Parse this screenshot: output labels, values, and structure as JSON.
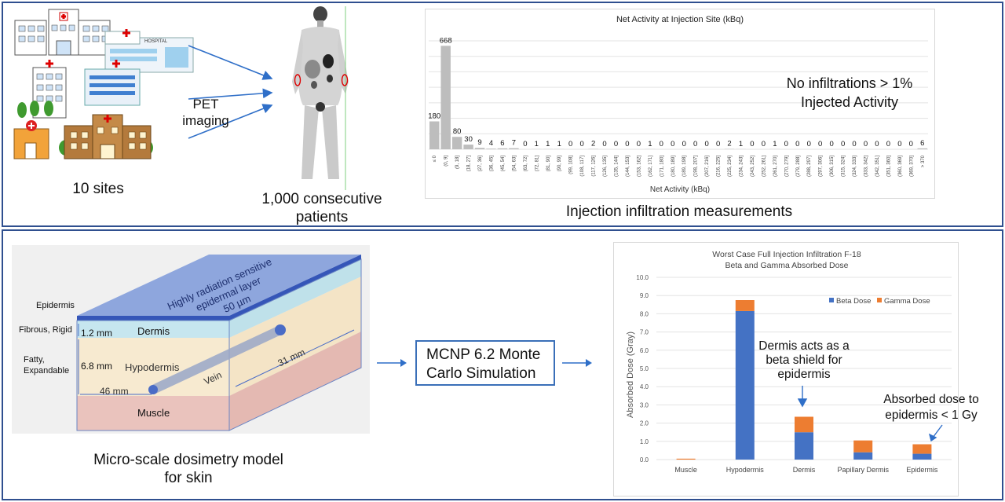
{
  "top": {
    "sites_caption": "10 sites",
    "pet_label_1": "PET",
    "pet_label_2": "imaging",
    "patients_caption_1": "1,000 consecutive",
    "patients_caption_2": "patients",
    "measurements_caption": "Injection infiltration measurements",
    "hospital_sign": "HOSPITAL"
  },
  "bottom": {
    "model_caption_1": "Micro-scale dosimetry model",
    "model_caption_2": "for skin",
    "sim_label_1": "MCNP 6.2 Monte",
    "sim_label_2": "Carlo Simulation",
    "skin": {
      "top_label_1": "Highly radiation sensitive",
      "top_label_2": "epidermal layer",
      "top_label_3": "50 µm",
      "epidermis": "Epidermis",
      "fibrous": "Fibrous, Rigid",
      "fatty_1": "Fatty,",
      "fatty_2": "Expandable",
      "dermis_thickness": "1.2 mm",
      "hypodermis_thickness": "6.8 mm",
      "dermis": "Dermis",
      "hypodermis": "Hypodermis",
      "muscle": "Muscle",
      "vein": "Vein",
      "width": "46 mm",
      "length": "31 mm"
    }
  },
  "colors": {
    "panel_border": "#2f4f8f",
    "bar_gray": "#bdbdbd",
    "beta": "#4472c4",
    "gamma": "#ed7d31",
    "epidermis_blue": "#6f8fd0",
    "dermis_cyan": "#c6e6ef",
    "hypodermis_cream": "#f7ead0",
    "muscle_pink": "#eac3bd"
  },
  "chart_data": [
    {
      "type": "bar",
      "title": "Net Activity  at Injection Site (kBq)",
      "xlabel": "Net Activity (kBq)",
      "ylabel": "",
      "categories": [
        "≤ 0",
        "(0, 9]",
        "(9, 18]",
        "(18, 27]",
        "(27, 36]",
        "(36, 45]",
        "(45, 54]",
        "(54, 63]",
        "(63, 72]",
        "(72, 81]",
        "(81, 90]",
        "(90, 99]",
        "(99, 108]",
        "(108, 117]",
        "(117, 126]",
        "(126, 135]",
        "(135, 144]",
        "(144, 153]",
        "(153, 162]",
        "(162, 171]",
        "(171, 180]",
        "(180, 189]",
        "(189, 198]",
        "(198, 207]",
        "(207, 216]",
        "(216, 225]",
        "(225, 234]",
        "(234, 243]",
        "(243, 252]",
        "(252, 261]",
        "(261, 270]",
        "(270, 279]",
        "(279, 288]",
        "(288, 297]",
        "(297, 306]",
        "(306, 315]",
        "(315, 324]",
        "(324, 333]",
        "(333, 342]",
        "(342, 351]",
        "(351, 360]",
        "(360, 369]",
        "(369, 370]",
        "> 370"
      ],
      "values": [
        180,
        668,
        80,
        30,
        9,
        4,
        6,
        7,
        0,
        1,
        1,
        1,
        0,
        0,
        2,
        0,
        0,
        0,
        0,
        1,
        0,
        0,
        0,
        0,
        0,
        0,
        2,
        1,
        0,
        0,
        1,
        0,
        0,
        0,
        0,
        0,
        0,
        0,
        0,
        0,
        0,
        0,
        0,
        6
      ],
      "ylim": [
        0,
        700
      ],
      "grid": true,
      "annotation_1": "No infiltrations > 1%",
      "annotation_2": "Injected Activity"
    },
    {
      "type": "bar",
      "stacked": true,
      "title": "Worst Case Full Injection Infiltration F-18",
      "subtitle": "Beta and Gamma Absorbed Dose",
      "xlabel": "",
      "ylabel": "Absorbed Dose (Gray)",
      "categories": [
        "Muscle",
        "Hypodermis",
        "Dermis",
        "Papillary Dermis",
        "Epidermis"
      ],
      "series": [
        {
          "name": "Beta Dose",
          "values": [
            0.0,
            8.15,
            1.5,
            0.4,
            0.32
          ]
        },
        {
          "name": "Gamma Dose",
          "values": [
            0.05,
            0.6,
            0.85,
            0.65,
            0.52
          ]
        }
      ],
      "yticks": [
        "0.0",
        "1.0",
        "2.0",
        "3.0",
        "4.0",
        "5.0",
        "6.0",
        "7.0",
        "8.0",
        "9.0",
        "10.0"
      ],
      "ylim": [
        0,
        10
      ],
      "grid": true,
      "legend": "top-right",
      "annotation_1": "Dermis acts as a",
      "annotation_2": "beta shield for",
      "annotation_3": "epidermis",
      "annotation_4": "Absorbed dose to",
      "annotation_5": "epidermis < 1 Gy"
    }
  ]
}
